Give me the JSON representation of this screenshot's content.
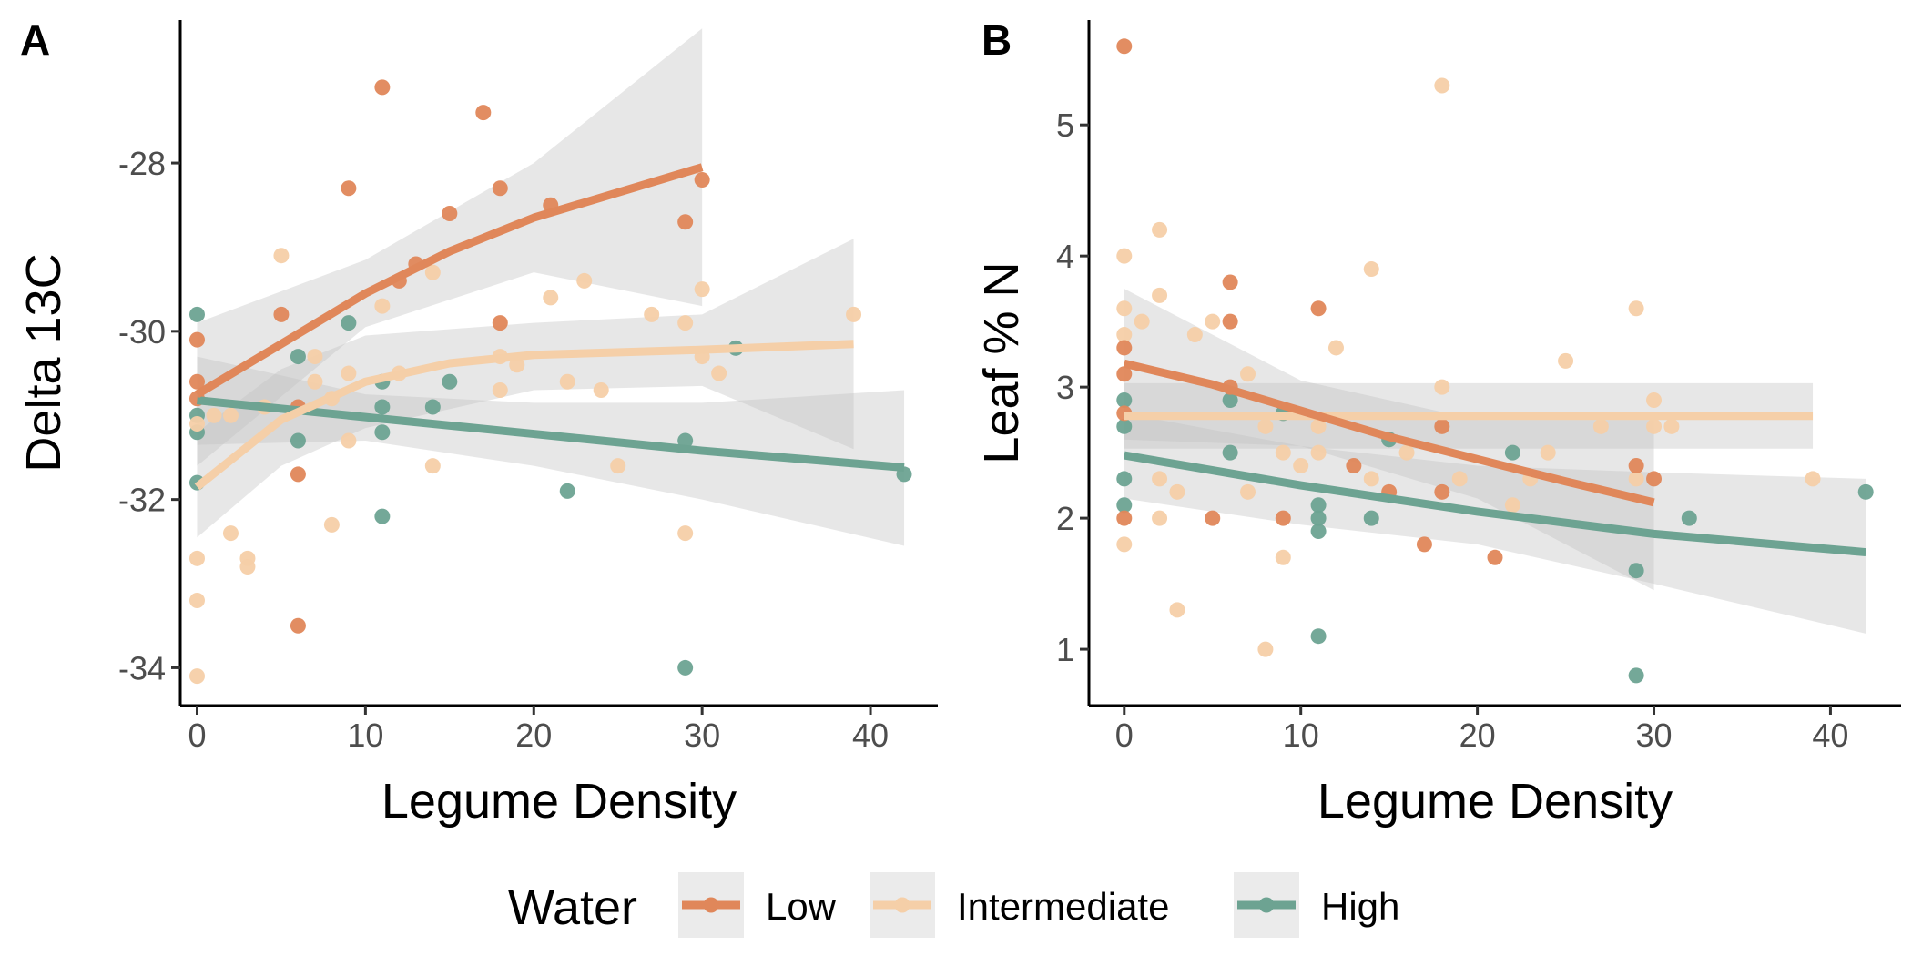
{
  "legend": {
    "title": "Water",
    "entries": [
      {
        "key": "low",
        "label": "Low",
        "color": "#E0875A"
      },
      {
        "key": "intermediate",
        "label": "Intermediate",
        "color": "#F5CFA8"
      },
      {
        "key": "high",
        "label": "High",
        "color": "#6DA392"
      }
    ],
    "position": "bottom"
  },
  "colors": {
    "low": "#E0875A",
    "intermediate": "#F5CFA8",
    "high": "#6DA392",
    "ribbon": "#bfbfbf"
  },
  "chart_data": [
    {
      "id": "A",
      "panel_label": "A",
      "type": "scatter",
      "xlabel": "Legume Density",
      "ylabel": "Delta 13C",
      "xlim": [
        -1,
        44
      ],
      "ylim": [
        -34.45,
        -26.3
      ],
      "xticks": [
        0,
        10,
        20,
        30,
        40
      ],
      "yticks": [
        -34,
        -32,
        -30,
        -28
      ],
      "grid": false,
      "series": [
        {
          "key": "low",
          "points": [
            [
              0,
              -30.1
            ],
            [
              0,
              -30.6
            ],
            [
              0,
              -30.8
            ],
            [
              5,
              -29.8
            ],
            [
              6,
              -30.9
            ],
            [
              6,
              -31.7
            ],
            [
              6,
              -33.5
            ],
            [
              9,
              -28.3
            ],
            [
              11,
              -27.1
            ],
            [
              12,
              -29.4
            ],
            [
              13,
              -29.2
            ],
            [
              15,
              -28.6
            ],
            [
              17,
              -27.4
            ],
            [
              18,
              -28.3
            ],
            [
              18,
              -29.9
            ],
            [
              21,
              -28.5
            ],
            [
              29,
              -28.7
            ],
            [
              30,
              -28.2
            ]
          ],
          "fit": [
            [
              0,
              -30.75
            ],
            [
              5,
              -30.15
            ],
            [
              10,
              -29.55
            ],
            [
              15,
              -29.05
            ],
            [
              20,
              -28.65
            ],
            [
              25,
              -28.35
            ],
            [
              30,
              -28.05
            ]
          ],
          "ribbon_upper": [
            [
              0,
              -29.9
            ],
            [
              10,
              -29.15
            ],
            [
              20,
              -28.0
            ],
            [
              30,
              -26.4
            ]
          ],
          "ribbon_lower": [
            [
              0,
              -31.6
            ],
            [
              10,
              -29.95
            ],
            [
              20,
              -29.3
            ],
            [
              30,
              -29.7
            ]
          ]
        },
        {
          "key": "intermediate",
          "points": [
            [
              0,
              -31.1
            ],
            [
              0,
              -32.7
            ],
            [
              0,
              -33.2
            ],
            [
              0,
              -34.1
            ],
            [
              1,
              -31.0
            ],
            [
              2,
              -31.0
            ],
            [
              2,
              -32.4
            ],
            [
              3,
              -32.7
            ],
            [
              3,
              -32.8
            ],
            [
              4,
              -30.9
            ],
            [
              5,
              -29.1
            ],
            [
              7,
              -30.3
            ],
            [
              7,
              -30.6
            ],
            [
              8,
              -30.8
            ],
            [
              8,
              -32.3
            ],
            [
              9,
              -30.5
            ],
            [
              9,
              -31.3
            ],
            [
              11,
              -29.7
            ],
            [
              12,
              -30.5
            ],
            [
              14,
              -29.3
            ],
            [
              14,
              -31.6
            ],
            [
              18,
              -30.3
            ],
            [
              18,
              -30.7
            ],
            [
              19,
              -30.4
            ],
            [
              21,
              -29.6
            ],
            [
              22,
              -30.6
            ],
            [
              23,
              -29.4
            ],
            [
              24,
              -30.7
            ],
            [
              25,
              -31.6
            ],
            [
              27,
              -29.8
            ],
            [
              29,
              -29.9
            ],
            [
              29,
              -32.4
            ],
            [
              30,
              -29.5
            ],
            [
              30,
              -30.3
            ],
            [
              31,
              -30.5
            ],
            [
              39,
              -29.8
            ]
          ],
          "fit": [
            [
              0,
              -31.85
            ],
            [
              5,
              -31.05
            ],
            [
              10,
              -30.6
            ],
            [
              15,
              -30.38
            ],
            [
              20,
              -30.28
            ],
            [
              30,
              -30.22
            ],
            [
              39,
              -30.15
            ]
          ],
          "ribbon_upper": [
            [
              0,
              -31.2
            ],
            [
              5,
              -30.45
            ],
            [
              10,
              -30.05
            ],
            [
              20,
              -29.9
            ],
            [
              30,
              -29.8
            ],
            [
              39,
              -28.9
            ]
          ],
          "ribbon_lower": [
            [
              0,
              -32.45
            ],
            [
              5,
              -31.6
            ],
            [
              10,
              -31.15
            ],
            [
              20,
              -30.7
            ],
            [
              30,
              -30.65
            ],
            [
              39,
              -31.4
            ]
          ]
        },
        {
          "key": "high",
          "points": [
            [
              0,
              -29.8
            ],
            [
              0,
              -31.0
            ],
            [
              0,
              -31.2
            ],
            [
              0,
              -31.8
            ],
            [
              6,
              -30.3
            ],
            [
              6,
              -31.3
            ],
            [
              9,
              -29.9
            ],
            [
              11,
              -30.6
            ],
            [
              11,
              -30.9
            ],
            [
              11,
              -31.2
            ],
            [
              11,
              -32.2
            ],
            [
              14,
              -30.9
            ],
            [
              15,
              -30.6
            ],
            [
              22,
              -31.9
            ],
            [
              29,
              -31.3
            ],
            [
              29,
              -34.0
            ],
            [
              32,
              -30.2
            ],
            [
              42,
              -31.7
            ]
          ],
          "fit": [
            [
              0,
              -30.82
            ],
            [
              10,
              -31.02
            ],
            [
              20,
              -31.22
            ],
            [
              30,
              -31.42
            ],
            [
              42,
              -31.62
            ]
          ],
          "ribbon_upper": [
            [
              0,
              -30.3
            ],
            [
              10,
              -30.75
            ],
            [
              20,
              -30.85
            ],
            [
              30,
              -30.85
            ],
            [
              42,
              -30.7
            ]
          ],
          "ribbon_lower": [
            [
              0,
              -31.35
            ],
            [
              10,
              -31.3
            ],
            [
              20,
              -31.6
            ],
            [
              30,
              -32.0
            ],
            [
              42,
              -32.55
            ]
          ]
        }
      ]
    },
    {
      "id": "B",
      "panel_label": "B",
      "type": "scatter",
      "xlabel": "Legume Density",
      "ylabel": "Leaf % N",
      "xlim": [
        -2,
        44
      ],
      "ylim": [
        0.57,
        5.8
      ],
      "xticks": [
        0,
        10,
        20,
        30,
        40
      ],
      "yticks": [
        1,
        2,
        3,
        4,
        5
      ],
      "grid": false,
      "series": [
        {
          "key": "low",
          "points": [
            [
              0,
              5.6
            ],
            [
              0,
              3.3
            ],
            [
              0,
              3.1
            ],
            [
              0,
              2.8
            ],
            [
              0,
              2.0
            ],
            [
              5,
              2.0
            ],
            [
              6,
              3.8
            ],
            [
              6,
              3.5
            ],
            [
              6,
              3.0
            ],
            [
              9,
              2.0
            ],
            [
              11,
              3.6
            ],
            [
              13,
              2.4
            ],
            [
              15,
              2.2
            ],
            [
              17,
              1.8
            ],
            [
              18,
              2.7
            ],
            [
              18,
              2.2
            ],
            [
              21,
              1.7
            ],
            [
              29,
              2.4
            ],
            [
              30,
              2.3
            ]
          ],
          "fit": [
            [
              0,
              3.18
            ],
            [
              5,
              3.02
            ],
            [
              10,
              2.82
            ],
            [
              15,
              2.62
            ],
            [
              20,
              2.45
            ],
            [
              25,
              2.28
            ],
            [
              30,
              2.12
            ]
          ],
          "ribbon_upper": [
            [
              0,
              3.75
            ],
            [
              10,
              3.05
            ],
            [
              20,
              2.75
            ],
            [
              30,
              2.75
            ]
          ],
          "ribbon_lower": [
            [
              0,
              2.6
            ],
            [
              10,
              2.55
            ],
            [
              20,
              2.15
            ],
            [
              30,
              1.45
            ]
          ]
        },
        {
          "key": "intermediate",
          "points": [
            [
              0,
              4.0
            ],
            [
              0,
              3.6
            ],
            [
              0,
              3.4
            ],
            [
              0,
              1.8
            ],
            [
              1,
              3.5
            ],
            [
              2,
              4.2
            ],
            [
              2,
              3.7
            ],
            [
              2,
              2.3
            ],
            [
              2,
              2.0
            ],
            [
              3,
              2.2
            ],
            [
              3,
              1.3
            ],
            [
              4,
              3.4
            ],
            [
              5,
              3.5
            ],
            [
              7,
              3.1
            ],
            [
              7,
              2.2
            ],
            [
              8,
              2.7
            ],
            [
              8,
              1.0
            ],
            [
              9,
              2.5
            ],
            [
              9,
              1.7
            ],
            [
              10,
              2.4
            ],
            [
              11,
              2.7
            ],
            [
              11,
              2.5
            ],
            [
              12,
              3.3
            ],
            [
              14,
              3.9
            ],
            [
              14,
              2.3
            ],
            [
              16,
              2.5
            ],
            [
              18,
              5.3
            ],
            [
              18,
              3.0
            ],
            [
              19,
              2.3
            ],
            [
              22,
              2.1
            ],
            [
              23,
              2.3
            ],
            [
              24,
              2.5
            ],
            [
              25,
              3.2
            ],
            [
              27,
              2.7
            ],
            [
              29,
              3.6
            ],
            [
              29,
              2.3
            ],
            [
              30,
              2.9
            ],
            [
              30,
              2.7
            ],
            [
              31,
              2.7
            ],
            [
              39,
              2.3
            ]
          ],
          "fit": [
            [
              0,
              2.78
            ],
            [
              39,
              2.78
            ]
          ],
          "ribbon_upper": [
            [
              0,
              3.03
            ],
            [
              39,
              3.03
            ]
          ],
          "ribbon_lower": [
            [
              0,
              2.53
            ],
            [
              39,
              2.53
            ]
          ]
        },
        {
          "key": "high",
          "points": [
            [
              0,
              2.9
            ],
            [
              0,
              2.7
            ],
            [
              0,
              2.3
            ],
            [
              0,
              2.1
            ],
            [
              6,
              2.9
            ],
            [
              6,
              2.5
            ],
            [
              9,
              2.8
            ],
            [
              11,
              2.1
            ],
            [
              11,
              2.0
            ],
            [
              11,
              1.9
            ],
            [
              11,
              1.1
            ],
            [
              14,
              2.0
            ],
            [
              15,
              2.6
            ],
            [
              22,
              2.5
            ],
            [
              29,
              1.6
            ],
            [
              29,
              0.8
            ],
            [
              32,
              2.0
            ],
            [
              42,
              2.2
            ]
          ],
          "fit": [
            [
              0,
              2.48
            ],
            [
              10,
              2.25
            ],
            [
              20,
              2.05
            ],
            [
              30,
              1.88
            ],
            [
              42,
              1.74
            ]
          ],
          "ribbon_upper": [
            [
              0,
              2.8
            ],
            [
              10,
              2.55
            ],
            [
              20,
              2.4
            ],
            [
              30,
              2.35
            ],
            [
              42,
              2.3
            ]
          ],
          "ribbon_lower": [
            [
              0,
              2.15
            ],
            [
              10,
              1.95
            ],
            [
              20,
              1.8
            ],
            [
              30,
              1.5
            ],
            [
              42,
              1.12
            ]
          ]
        }
      ]
    }
  ]
}
